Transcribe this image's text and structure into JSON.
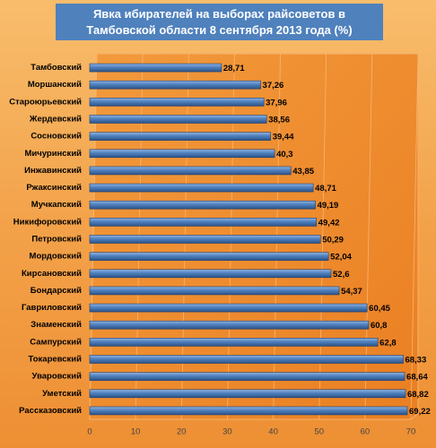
{
  "chart_data": {
    "type": "bar",
    "orientation": "horizontal",
    "title": "Явка ибирателей на выборах райсоветов в Тамбовской области 8 сентября 2013 года (%)",
    "categories": [
      "Тамбовский",
      "Моршанский",
      "Староюрьевский",
      "Жердевский",
      "Сосновский",
      "Мичуринский",
      "Инжавинский",
      "Ржаксинский",
      "Мучкапский",
      "Никифоровский",
      "Петровский",
      "Мордовский",
      "Кирсановский",
      "Бондарский",
      "Гавриловский",
      "Знаменский",
      "Сампурский",
      "Токаревский",
      "Уваровский",
      "Уметский",
      "Рассказовский"
    ],
    "values": [
      28.71,
      37.26,
      37.96,
      38.56,
      39.44,
      40.3,
      43.85,
      48.71,
      49.19,
      49.42,
      50.29,
      52.04,
      52.6,
      54.37,
      60.45,
      60.8,
      62.8,
      68.33,
      68.64,
      68.82,
      69.22
    ],
    "value_labels": [
      "28,71",
      "37,26",
      "37,96",
      "38,56",
      "39,44",
      "40,3",
      "43,85",
      "48,71",
      "49,19",
      "49,42",
      "50,29",
      "52,04",
      "52,6",
      "54,37",
      "60,45",
      "60,8",
      "62,8",
      "68,33",
      "68,64",
      "68,82",
      "69,22"
    ],
    "color": "#4f81bd",
    "xlim": [
      0,
      70
    ],
    "xticks": [
      0,
      10,
      20,
      30,
      40,
      50,
      60,
      70
    ],
    "grid": true
  }
}
